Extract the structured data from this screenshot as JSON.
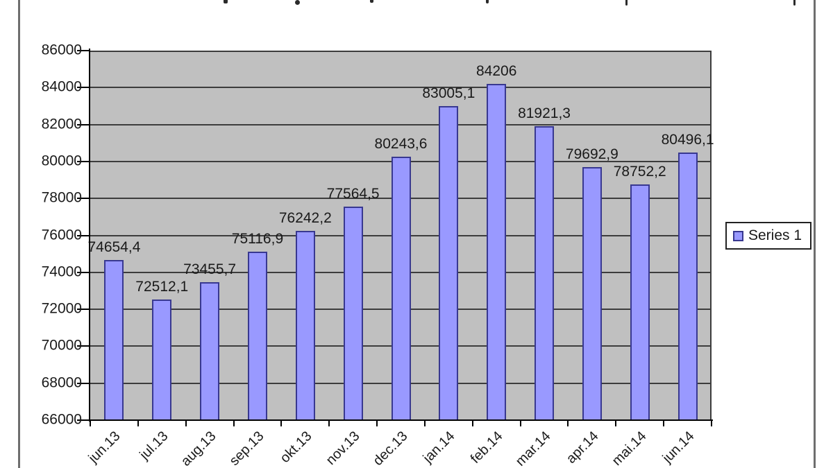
{
  "window": {
    "background": "#ffffff",
    "frame_border_color": "#6e6e6e",
    "note_title": "chart title cropped out of view at top edge"
  },
  "chart_data": {
    "type": "bar",
    "categories": [
      "jun.13",
      "jul.13",
      "aug.13",
      "sep.13",
      "okt.13",
      "nov.13",
      "dec.13",
      "jan.14",
      "feb.14",
      "mar.14",
      "apr.14",
      "mai.14",
      "jun.14"
    ],
    "series": [
      {
        "name": "Series 1",
        "values": [
          74654.4,
          72512.1,
          73455.7,
          75116.9,
          76242.2,
          77564.5,
          80243.6,
          83005.1,
          84206,
          81921.3,
          79692.9,
          78752.2,
          80496.1
        ]
      }
    ],
    "value_labels": [
      "74654,4",
      "72512,1",
      "73455,7",
      "75116,9",
      "76242,2",
      "77564,5",
      "80243,6",
      "83005,1",
      "84206",
      "81921,3",
      "79692,9",
      "78752,2",
      "80496,1"
    ],
    "ylim": [
      66000,
      86000
    ],
    "ytick_step": 2000,
    "ytick_labels": [
      "86000",
      "84000",
      "82000",
      "80000",
      "78000",
      "76000",
      "74000",
      "72000",
      "70000",
      "68000",
      "66000"
    ],
    "grid": true,
    "legend_position": "right",
    "xlabel": "",
    "ylabel": "",
    "plot_background": "#c0c0c0",
    "bar_fill": "#9999ff",
    "bar_border": "#383890",
    "gridline_color": "#3c3c3c",
    "axis_color": "#000000",
    "label_rotation_deg": -45
  },
  "legend": {
    "label": "Series 1"
  }
}
